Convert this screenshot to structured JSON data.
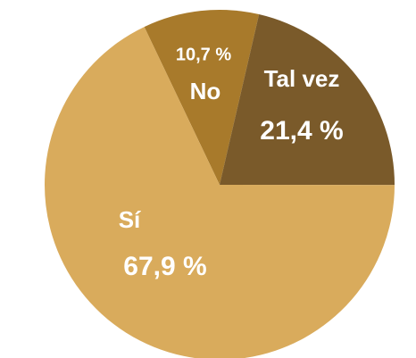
{
  "chart_data": {
    "type": "pie",
    "categories": [
      "No",
      "Tal vez",
      "Sí"
    ],
    "values": [
      10.7,
      21.4,
      67.9
    ],
    "value_labels": [
      "10,7 %",
      "21,4 %",
      "67,9 %"
    ],
    "colors": [
      "#a87a2b",
      "#7a5a2a",
      "#d9ab5c"
    ]
  }
}
